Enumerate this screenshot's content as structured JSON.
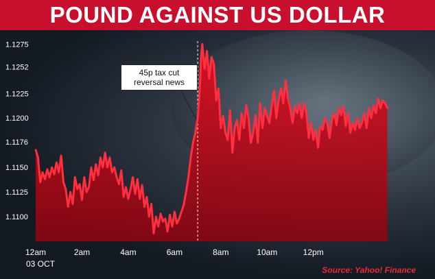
{
  "title": "POUND AGAINST US DOLLAR",
  "date_label": "03 OCT",
  "source": "Source: Yahoo! Finance",
  "annotation": {
    "text": "45p tax cut reversal news",
    "line1": "45p tax cut",
    "line2": "reversal news",
    "x": "7am"
  },
  "colors": {
    "banner": "#c8102e",
    "line": "#ff2f3f",
    "fill": "#e01023",
    "source": "#e8283e"
  },
  "chart_data": {
    "type": "area",
    "title": "POUND AGAINST US DOLLAR",
    "xlabel": "",
    "ylabel": "",
    "x_ticks": [
      "12am",
      "2am",
      "4am",
      "6am",
      "8am",
      "10am",
      "12pm"
    ],
    "y_ticks": [
      "1.1100",
      "1.1125",
      "1.1150",
      "1.1176",
      "1.1200",
      "1.1225",
      "1.1252",
      "1.1275"
    ],
    "ylim": [
      1.1075,
      1.1285
    ],
    "xlim": [
      0,
      15.3
    ],
    "grid": false,
    "series": [
      {
        "x": [
          0.0,
          0.1,
          0.2,
          0.3,
          0.4,
          0.5,
          0.6,
          0.7,
          0.8,
          0.9,
          1.0,
          1.1,
          1.2,
          1.3,
          1.4,
          1.5,
          1.6,
          1.7,
          1.8,
          1.9,
          2.0,
          2.1,
          2.2,
          2.3,
          2.4,
          2.5,
          2.6,
          2.7,
          2.8,
          2.9,
          3.0,
          3.1,
          3.2,
          3.3,
          3.4,
          3.5,
          3.6,
          3.7,
          3.8,
          3.9,
          4.0,
          4.1,
          4.2,
          4.3,
          4.4,
          4.5,
          4.6,
          4.7,
          4.8,
          4.9,
          5.0,
          5.1,
          5.2,
          5.3,
          5.4,
          5.5,
          5.6,
          5.7,
          5.8,
          5.9,
          6.0,
          6.1,
          6.2,
          6.3,
          6.4,
          6.5,
          6.6,
          6.7,
          6.8,
          6.9,
          7.0,
          7.05,
          7.1,
          7.15,
          7.2,
          7.3,
          7.4,
          7.5,
          7.6,
          7.7,
          7.8,
          7.9,
          8.0,
          8.1,
          8.2,
          8.3,
          8.4,
          8.5,
          8.6,
          8.7,
          8.8,
          8.9,
          9.0,
          9.1,
          9.2,
          9.3,
          9.4,
          9.5,
          9.6,
          9.7,
          9.8,
          9.9,
          10.0,
          10.1,
          10.2,
          10.3,
          10.4,
          10.5,
          10.6,
          10.7,
          10.8,
          10.9,
          11.0,
          11.1,
          11.2,
          11.3,
          11.4,
          11.5,
          11.6,
          11.7,
          11.8,
          11.9,
          12.0,
          12.1,
          12.2,
          12.3,
          12.4,
          12.5,
          12.6,
          12.7,
          12.8,
          12.9,
          13.0,
          13.1,
          13.2,
          13.3,
          13.4,
          13.5,
          13.6,
          13.7,
          13.8,
          13.9,
          14.0,
          14.1,
          14.2,
          14.3,
          14.4,
          14.5,
          14.6,
          14.7,
          14.8,
          14.9,
          15.0,
          15.1,
          15.2
        ],
        "values": [
          1.1168,
          1.116,
          1.1135,
          1.1145,
          1.1138,
          1.1148,
          1.114,
          1.115,
          1.1143,
          1.1155,
          1.1145,
          1.1162,
          1.1135,
          1.1128,
          1.111,
          1.1125,
          1.1113,
          1.114,
          1.1128,
          1.1133,
          1.1117,
          1.114,
          1.1125,
          1.113,
          1.115,
          1.1137,
          1.1153,
          1.1142,
          1.116,
          1.115,
          1.1165,
          1.115,
          1.116,
          1.1145,
          1.115,
          1.114,
          1.1133,
          1.1147,
          1.112,
          1.113,
          1.1118,
          1.1128,
          1.114,
          1.1123,
          1.1138,
          1.1118,
          1.1132,
          1.111,
          1.112,
          1.11,
          1.1113,
          1.1083,
          1.11,
          1.109,
          1.1103,
          1.1095,
          1.1098,
          1.1085,
          1.1102,
          1.109,
          1.1105,
          1.1093,
          1.1098,
          1.1105,
          1.1112,
          1.1125,
          1.114,
          1.116,
          1.1175,
          1.1185,
          1.12,
          1.1215,
          1.1235,
          1.1262,
          1.1275,
          1.125,
          1.1268,
          1.124,
          1.1262,
          1.1255,
          1.1218,
          1.123,
          1.119,
          1.1202,
          1.1185,
          1.1178,
          1.1208,
          1.1165,
          1.119,
          1.1198,
          1.1178,
          1.1205,
          1.119,
          1.1213,
          1.12,
          1.1175,
          1.1185,
          1.1203,
          1.1175,
          1.1215,
          1.119,
          1.121,
          1.1202,
          1.1195,
          1.1212,
          1.1228,
          1.12,
          1.1218,
          1.123,
          1.1215,
          1.1238,
          1.122,
          1.121,
          1.1195,
          1.1212,
          1.1205,
          1.1215,
          1.12,
          1.1215,
          1.1205,
          1.118,
          1.1195,
          1.1178,
          1.1188,
          1.117,
          1.1192,
          1.1188,
          1.12,
          1.1195,
          1.118,
          1.1198,
          1.1205,
          1.1193,
          1.121,
          1.1203,
          1.1212,
          1.1192,
          1.1205,
          1.1185,
          1.1195,
          1.1188,
          1.12,
          1.119,
          1.1195,
          1.1205,
          1.119,
          1.121,
          1.12,
          1.1213,
          1.1205,
          1.122,
          1.121,
          1.1218,
          1.1215,
          1.121
        ]
      }
    ]
  }
}
